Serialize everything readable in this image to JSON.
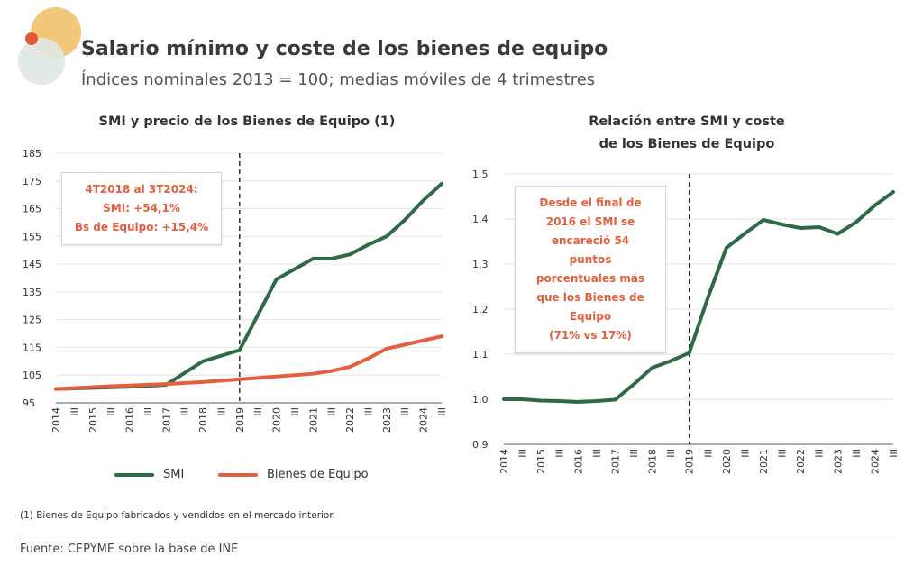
{
  "header": {
    "title": "Salario mínimo y coste de los bienes de equipo",
    "subtitle": "Índices nominales 2013 = 100; medias móviles de 4 trimestres"
  },
  "colors": {
    "smi": "#2d6a45",
    "bienes": "#e2603f",
    "note": "#e2603f",
    "logo": [
      "#f3c77a",
      "#dfe8e3",
      "#e05a3a"
    ]
  },
  "left_annotation": [
    "4T2018 al 3T2024:",
    "SMI: +54,1%",
    "Bs de Equipo: +15,4%"
  ],
  "right_annotation": [
    "Desde el final de",
    "2016 el SMI se",
    "encareció 54",
    "puntos",
    "porcentuales más",
    "que los Bienes de",
    "Equipo",
    "(71% vs 17%)"
  ],
  "legend": {
    "smi": "SMI",
    "bienes": "Bienes de Equipo"
  },
  "footnote": "(1) Bienes de Equipo fabricados y vendidos en el mercado interior.",
  "source": "Fuente: CEPYME sobre la base de INE",
  "chart_data": [
    {
      "type": "line",
      "title": "SMI y precio de los Bienes de Equipo (1)",
      "x_ticks": [
        "2014",
        "III",
        "2015",
        "III",
        "2016",
        "III",
        "2017",
        "III",
        "2018",
        "III",
        "2019",
        "III",
        "2020",
        "III",
        "2021",
        "III",
        "2022",
        "III",
        "2023",
        "III",
        "2024",
        "III"
      ],
      "ylim": [
        95,
        185
      ],
      "yticks": [
        "95",
        "105",
        "115",
        "125",
        "135",
        "145",
        "155",
        "165",
        "175",
        "185"
      ],
      "vline_at": 10,
      "series": [
        {
          "name": "SMI",
          "x": [
            0,
            4,
            6,
            8,
            10,
            12,
            14,
            15,
            16,
            17,
            18,
            19,
            20,
            21
          ],
          "values": [
            100,
            100.8,
            101.5,
            110,
            114,
            139.5,
            147,
            147,
            148.5,
            152,
            155,
            161,
            168,
            174
          ]
        },
        {
          "name": "Bienes de Equipo",
          "x": [
            0,
            3,
            6,
            8,
            10,
            12,
            14,
            15,
            16,
            17,
            18,
            19,
            20,
            21
          ],
          "values": [
            100,
            101,
            101.8,
            102.5,
            103.5,
            104.5,
            105.5,
            106.5,
            108,
            111,
            114.5,
            116,
            117.5,
            119
          ]
        }
      ]
    },
    {
      "type": "line",
      "title": [
        "Relación entre SMI y coste",
        "de los Bienes de Equipo"
      ],
      "x_ticks": [
        "2014",
        "III",
        "2015",
        "III",
        "2016",
        "III",
        "2017",
        "III",
        "2018",
        "III",
        "2019",
        "III",
        "2020",
        "III",
        "2021",
        "III",
        "2022",
        "III",
        "2023",
        "III",
        "2024",
        "III"
      ],
      "ylim": [
        0.9,
        1.5
      ],
      "yticks": [
        "0,9",
        "1,0",
        "1,1",
        "1,2",
        "1,3",
        "1,4",
        "1,5"
      ],
      "vline_at": 10,
      "series": [
        {
          "x": [
            0,
            1,
            2,
            3,
            4,
            5,
            6,
            7,
            8,
            9,
            10,
            11,
            12,
            13,
            14,
            15,
            16,
            17,
            18,
            19,
            20,
            21
          ],
          "values": [
            1.0,
            1.0,
            0.997,
            0.996,
            0.994,
            0.996,
            0.999,
            1.033,
            1.07,
            1.085,
            1.103,
            1.225,
            1.336,
            1.368,
            1.398,
            1.388,
            1.38,
            1.382,
            1.367,
            1.393,
            1.43,
            1.46
          ]
        }
      ]
    }
  ]
}
